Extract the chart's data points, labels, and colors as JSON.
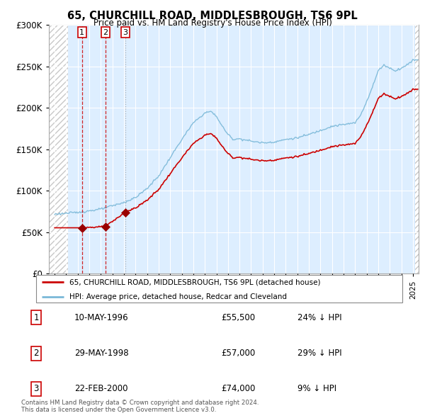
{
  "title1": "65, CHURCHILL ROAD, MIDDLESBROUGH, TS6 9PL",
  "title2": "Price paid vs. HM Land Registry's House Price Index (HPI)",
  "legend_line1": "65, CHURCHILL ROAD, MIDDLESBROUGH, TS6 9PL (detached house)",
  "legend_line2": "HPI: Average price, detached house, Redcar and Cleveland",
  "footer": "Contains HM Land Registry data © Crown copyright and database right 2024.\nThis data is licensed under the Open Government Licence v3.0.",
  "sales": [
    {
      "num": 1,
      "date": "10-MAY-1996",
      "price": 55500,
      "year": 1996.37,
      "pct": "24%",
      "dir": "↓"
    },
    {
      "num": 2,
      "date": "29-MAY-1998",
      "price": 57000,
      "year": 1998.41,
      "pct": "29%",
      "dir": "↓"
    },
    {
      "num": 3,
      "date": "22-FEB-2000",
      "price": 74000,
      "year": 2000.13,
      "pct": "9%",
      "dir": "↓"
    }
  ],
  "hpi_color": "#7ab8d8",
  "price_color": "#cc0000",
  "marker_color": "#990000",
  "sale1_dash_color": "#cc0000",
  "sale2_dash_color": "#cc0000",
  "sale3_dash_color": "#aaaaaa",
  "chart_bg_color": "#ddeeff",
  "hatch_color": "#c8c8c8",
  "grid_color": "#ffffff",
  "ylim": [
    0,
    300000
  ],
  "yticks": [
    0,
    50000,
    100000,
    150000,
    200000,
    250000,
    300000
  ],
  "xlim_start": 1993.5,
  "xlim_end": 2025.5,
  "hatch_left_end": 1995.17,
  "hatch_right_start": 2025.17
}
